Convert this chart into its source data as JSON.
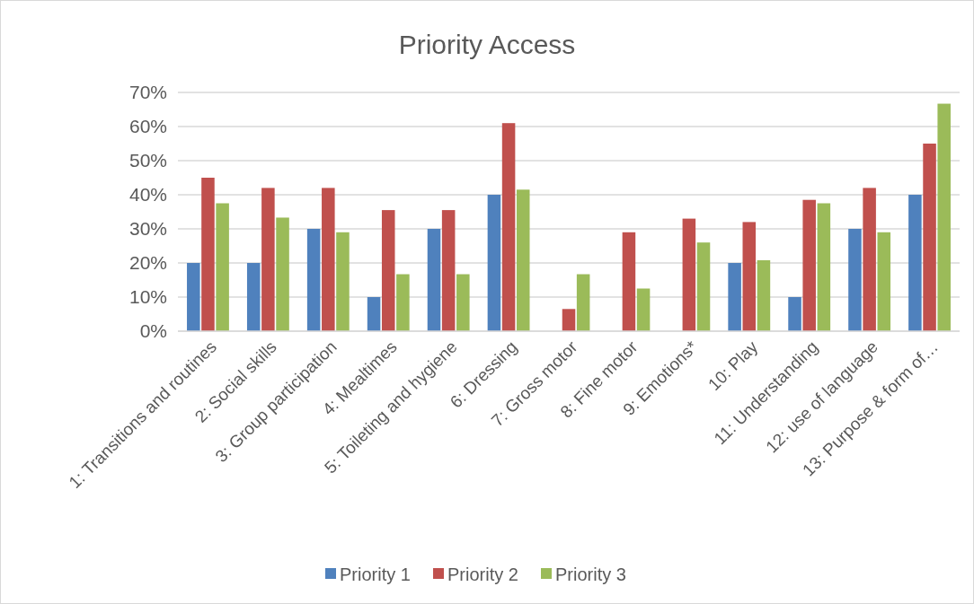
{
  "chart_data": {
    "type": "bar",
    "title": "Priority Access",
    "categories": [
      "1: Transitions and routines",
      "2: Social skills",
      "3: Group participation",
      "4: Mealtimes",
      "5: Toileting and hygiene",
      "6: Dressing",
      "7: Gross motor",
      "8: Fine motor",
      "9: Emotions*",
      "10: Play",
      "11: Understanding",
      "12: use of language",
      "13: Purpose & form of…"
    ],
    "series": [
      {
        "name": "Priority 1",
        "color": "#4f81bd",
        "values": [
          20,
          20,
          30,
          10,
          30,
          40,
          null,
          null,
          null,
          20,
          10,
          30,
          40
        ]
      },
      {
        "name": "Priority 2",
        "color": "#c0504d",
        "values": [
          45,
          42,
          42,
          35.5,
          35.5,
          61,
          6.5,
          29,
          33,
          32,
          38.5,
          42,
          55
        ]
      },
      {
        "name": "Priority 3",
        "color": "#9bbb59",
        "values": [
          37.5,
          33.3,
          29,
          16.7,
          16.7,
          41.5,
          16.7,
          12.5,
          26,
          20.8,
          37.5,
          29,
          66.7
        ]
      }
    ],
    "ylim": [
      0,
      70
    ],
    "yticks": [
      {
        "value": 0,
        "label": "0%"
      },
      {
        "value": 10,
        "label": "10%"
      },
      {
        "value": 20,
        "label": "20%"
      },
      {
        "value": 30,
        "label": "30%"
      },
      {
        "value": 40,
        "label": "40%"
      },
      {
        "value": 50,
        "label": "50%"
      },
      {
        "value": 60,
        "label": "60%"
      },
      {
        "value": 70,
        "label": "70%"
      }
    ],
    "grid": "y",
    "legend": "bottom"
  }
}
